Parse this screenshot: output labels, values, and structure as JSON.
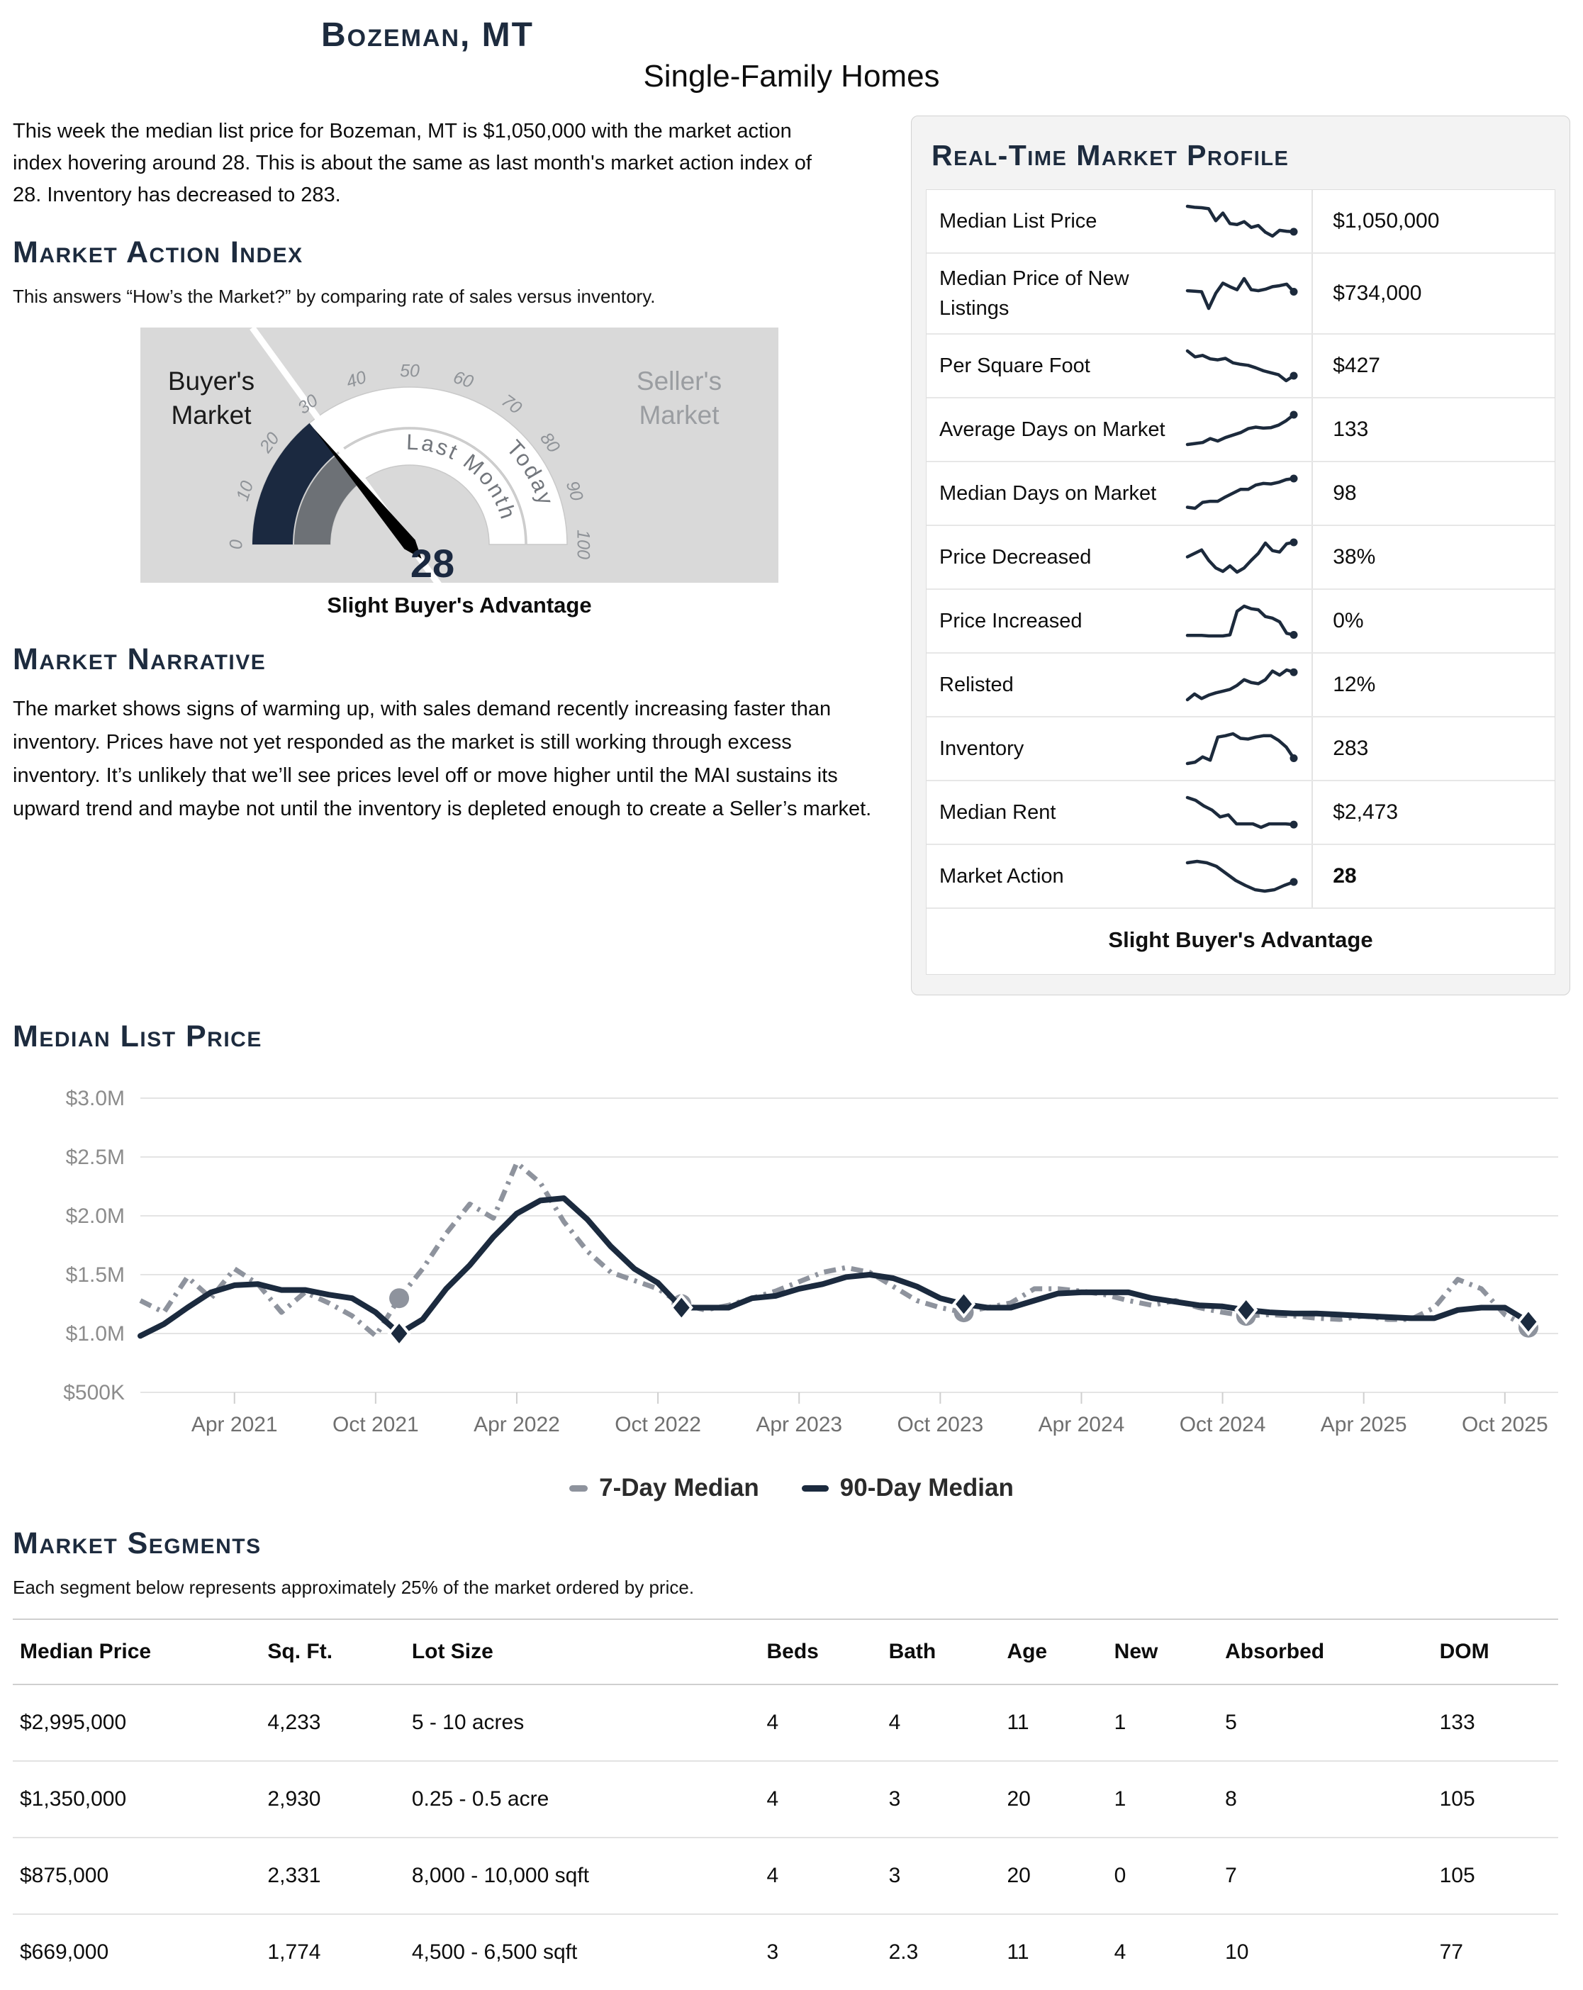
{
  "header": {
    "city": "Bozeman, MT",
    "subtitle": "Single-Family Homes"
  },
  "intro": "This week the median list price for Bozeman, MT is $1,050,000 with the market action index hovering around 28. This is about the same as last month's market action index of 28. Inventory has decreased to 283.",
  "market_action_index": {
    "heading": "Market Action Index",
    "caption": "This answers “How’s the Market?” by comparing rate of sales versus inventory.",
    "gauge": {
      "min": 0,
      "max": 100,
      "tick_step": 10,
      "value": 28,
      "value_label": "28",
      "last_month_value": 28,
      "threshold": 30,
      "left_label_line1": "Buyer's",
      "left_label_line2": "Market",
      "right_label_line1": "Seller's",
      "right_label_line2": "Market",
      "inner_band_label": "Last Month",
      "outer_band_label": "Today",
      "status": "Slight Buyer's Advantage",
      "colors": {
        "bg": "#d9d9d9",
        "today_arc": "#1b2940",
        "last_month_arc": "#6d7176",
        "needle": "#000000",
        "tick": "#8f9398",
        "band_label": "#72767c",
        "value": "#1b2940",
        "band_stroke": "#c9c9c9",
        "left_label": "#1b1b1b",
        "right_label": "#9a9da1",
        "threshold_line": "#ffffff"
      }
    }
  },
  "narrative": {
    "heading": "Market Narrative",
    "text": "The market shows signs of warming up, with sales demand recently increasing faster than inventory. Prices have not yet responded as the market is still working through excess inventory. It’s unlikely that we’ll see prices level off or move higher until the MAI sustains its upward trend and maybe not until the inventory is depleted enough to create a Seller’s market."
  },
  "profile": {
    "heading": "Real-Time Market Profile",
    "status": "Slight Buyer's Advantage",
    "spark_color": "#1c2a3c",
    "rows": [
      {
        "label": "Median List Price",
        "value": "$1,050,000",
        "bold": false,
        "spark": [
          9.6,
          9.4,
          9.3,
          9.1,
          6.6,
          8.2,
          6.0,
          5.8,
          6.4,
          5.2,
          5.6,
          4.2,
          3.4,
          4.6,
          4.4,
          4.3
        ]
      },
      {
        "label": "Median Price of New Listings",
        "value": "$734,000",
        "bold": false,
        "spark": [
          6.0,
          5.9,
          5.8,
          2.5,
          5.5,
          7.5,
          6.8,
          6.2,
          8.4,
          6.2,
          6.0,
          6.3,
          6.8,
          7.0,
          7.3,
          5.8
        ]
      },
      {
        "label": "Per Square Foot",
        "value": "$427",
        "bold": false,
        "spark": [
          9.4,
          8.2,
          8.5,
          7.8,
          7.6,
          7.9,
          7.0,
          6.7,
          6.5,
          6.0,
          5.4,
          5.0,
          4.6,
          3.4,
          4.4
        ]
      },
      {
        "label": "Average Days on Market",
        "value": "133",
        "bold": false,
        "spark": [
          2.2,
          2.4,
          2.6,
          3.4,
          2.9,
          3.6,
          4.1,
          4.6,
          5.4,
          5.7,
          5.5,
          5.6,
          6.1,
          7.0,
          8.2
        ]
      },
      {
        "label": "Median Days on Market",
        "value": "98",
        "bold": false,
        "spark": [
          2.0,
          1.8,
          2.9,
          3.1,
          3.1,
          3.9,
          4.6,
          5.3,
          5.3,
          6.1,
          6.4,
          6.3,
          6.6,
          7.1,
          7.3
        ]
      },
      {
        "label": "Price Decreased",
        "value": "38%",
        "bold": false,
        "spark": [
          5.2,
          5.7,
          6.2,
          4.7,
          3.6,
          3.1,
          3.9,
          3.0,
          3.6,
          4.7,
          5.7,
          7.2,
          6.1,
          5.9,
          7.1,
          7.3
        ]
      },
      {
        "label": "Price Increased",
        "value": "0%",
        "bold": false,
        "spark": [
          2.0,
          2.0,
          2.0,
          1.9,
          1.9,
          1.9,
          2.1,
          6.6,
          7.6,
          7.1,
          6.9,
          5.6,
          5.3,
          4.6,
          2.4,
          2.1
        ]
      },
      {
        "label": "Relisted",
        "value": "12%",
        "bold": false,
        "spark": [
          2.1,
          3.1,
          2.3,
          2.9,
          3.3,
          3.6,
          3.9,
          4.6,
          5.6,
          5.1,
          4.9,
          5.6,
          7.1,
          6.4,
          7.3,
          6.9
        ]
      },
      {
        "label": "Inventory",
        "value": "283",
        "bold": false,
        "spark": [
          3.1,
          3.3,
          4.1,
          3.6,
          7.1,
          7.3,
          7.6,
          6.9,
          6.8,
          7.1,
          7.3,
          7.3,
          6.6,
          5.6,
          3.9
        ]
      },
      {
        "label": "Median Rent",
        "value": "$2,473",
        "bold": false,
        "spark": [
          8.4,
          8.0,
          7.2,
          6.6,
          5.6,
          5.9,
          4.6,
          4.6,
          4.6,
          4.1,
          4.6,
          4.6,
          4.6,
          4.5
        ]
      },
      {
        "label": "Market Action",
        "value": "28",
        "bold": true,
        "spark": [
          7.1,
          7.3,
          7.1,
          6.6,
          5.6,
          4.6,
          3.9,
          3.3,
          3.1,
          3.3,
          3.9,
          4.4
        ]
      }
    ]
  },
  "chart_section": {
    "heading": "Median List Price"
  },
  "chart_data": {
    "type": "line",
    "title": "Median List Price",
    "ylabel": "Price",
    "ylim_million_usd": [
      0.5,
      3.0
    ],
    "grid": true,
    "legend_position": "bottom",
    "y_tick_labels": [
      "$500K",
      "$1.0M",
      "$1.5M",
      "$2.0M",
      "$2.5M",
      "$3.0M"
    ],
    "x_tick_labels": [
      "Apr 2021",
      "Oct 2021",
      "Apr 2022",
      "Oct 2022",
      "Apr 2023",
      "Oct 2023",
      "Apr 2024",
      "Oct 2024",
      "Apr 2025",
      "Oct 2025"
    ],
    "x_tick_indices": [
      4,
      10,
      16,
      22,
      28,
      34,
      40,
      46,
      52,
      58
    ],
    "points_are_monthly": true,
    "series": [
      {
        "name": "7-Day Median",
        "color": "#8e939d",
        "style": "dashed",
        "marker": "circle",
        "marker_indices": [
          11,
          23,
          35,
          47,
          59
        ],
        "values_million_usd": [
          1.28,
          1.18,
          1.48,
          1.3,
          1.55,
          1.42,
          1.18,
          1.35,
          1.26,
          1.15,
          0.98,
          1.3,
          1.55,
          1.85,
          2.1,
          1.98,
          2.45,
          2.28,
          1.95,
          1.7,
          1.52,
          1.45,
          1.38,
          1.25,
          1.2,
          1.24,
          1.3,
          1.36,
          1.44,
          1.52,
          1.56,
          1.52,
          1.4,
          1.28,
          1.22,
          1.18,
          1.22,
          1.26,
          1.38,
          1.38,
          1.36,
          1.33,
          1.28,
          1.24,
          1.28,
          1.22,
          1.18,
          1.15,
          1.16,
          1.15,
          1.13,
          1.12,
          1.15,
          1.12,
          1.12,
          1.22,
          1.46,
          1.38,
          1.16,
          1.05
        ]
      },
      {
        "name": "90-Day Median",
        "color": "#1b2a3e",
        "style": "solid",
        "marker": "diamond",
        "marker_indices": [
          11,
          23,
          35,
          47,
          59
        ],
        "values_million_usd": [
          0.98,
          1.08,
          1.22,
          1.35,
          1.41,
          1.42,
          1.37,
          1.37,
          1.33,
          1.3,
          1.18,
          1.0,
          1.12,
          1.38,
          1.58,
          1.82,
          2.02,
          2.13,
          2.15,
          1.97,
          1.74,
          1.55,
          1.43,
          1.22,
          1.22,
          1.22,
          1.3,
          1.32,
          1.38,
          1.42,
          1.48,
          1.5,
          1.47,
          1.4,
          1.3,
          1.25,
          1.22,
          1.22,
          1.28,
          1.34,
          1.35,
          1.35,
          1.35,
          1.3,
          1.27,
          1.24,
          1.23,
          1.2,
          1.18,
          1.17,
          1.17,
          1.16,
          1.15,
          1.14,
          1.13,
          1.13,
          1.2,
          1.22,
          1.22,
          1.1
        ]
      }
    ]
  },
  "segments": {
    "heading": "Market Segments",
    "caption": "Each segment below represents approximately 25% of the market ordered by price.",
    "columns": [
      "Median Price",
      "Sq. Ft.",
      "Lot Size",
      "Beds",
      "Bath",
      "Age",
      "New",
      "Absorbed",
      "DOM"
    ],
    "rows": [
      [
        "$2,995,000",
        "4,233",
        "5 - 10 acres",
        "4",
        "4",
        "11",
        "1",
        "5",
        "133"
      ],
      [
        "$1,350,000",
        "2,930",
        "0.25 - 0.5 acre",
        "4",
        "3",
        "20",
        "1",
        "8",
        "105"
      ],
      [
        "$875,000",
        "2,331",
        "8,000 - 10,000 sqft",
        "4",
        "3",
        "20",
        "0",
        "7",
        "105"
      ],
      [
        "$669,000",
        "1,774",
        "4,500 - 6,500 sqft",
        "3",
        "2.3",
        "11",
        "4",
        "10",
        "77"
      ]
    ]
  }
}
